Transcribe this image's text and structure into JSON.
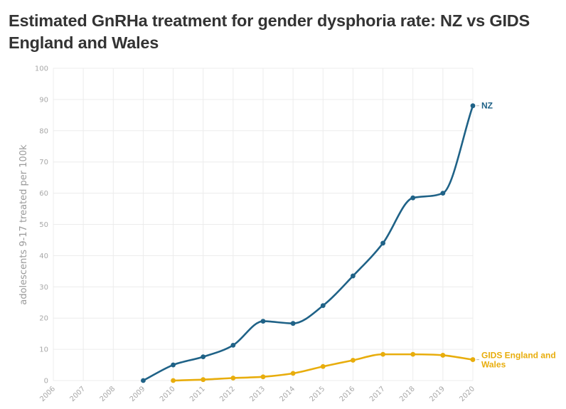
{
  "title": "Estimated GnRHa treatment for gender dysphoria rate: NZ vs GIDS England and Wales",
  "colors": {
    "nz": "#1f6287",
    "gids": "#e8ad0c",
    "grid": "#ececec",
    "tick": "#a8a8a8"
  },
  "chart_data": {
    "type": "line",
    "ylabel": "adolescents 9-17 treated per 100k",
    "xlabel": "",
    "ylim": [
      0,
      100
    ],
    "yticks": [
      0,
      10,
      20,
      30,
      40,
      50,
      60,
      70,
      80,
      90,
      100
    ],
    "xticks": [
      "2006",
      "2007",
      "2008",
      "2009",
      "2010",
      "2011",
      "2012",
      "2013",
      "2014",
      "2015",
      "2016",
      "2017",
      "2018",
      "2019",
      "2020"
    ],
    "grid": true,
    "legend": "inline labels at line ends",
    "series": [
      {
        "name": "NZ",
        "x": [
          2009,
          2010,
          2011,
          2012,
          2013,
          2014,
          2015,
          2016,
          2017,
          2018,
          2019,
          2020
        ],
        "values": [
          0,
          5,
          7.6,
          11.3,
          19,
          18.3,
          24,
          33.5,
          44,
          58.5,
          60,
          88
        ]
      },
      {
        "name": "GIDS England and Wales",
        "label_lines": [
          "GIDS England and",
          "Wales"
        ],
        "x": [
          2010,
          2011,
          2012,
          2013,
          2014,
          2015,
          2016,
          2017,
          2018,
          2019,
          2020
        ],
        "values": [
          0,
          0.3,
          0.8,
          1.2,
          2.3,
          4.5,
          6.5,
          8.4,
          8.4,
          8.1,
          6.7
        ]
      }
    ]
  }
}
